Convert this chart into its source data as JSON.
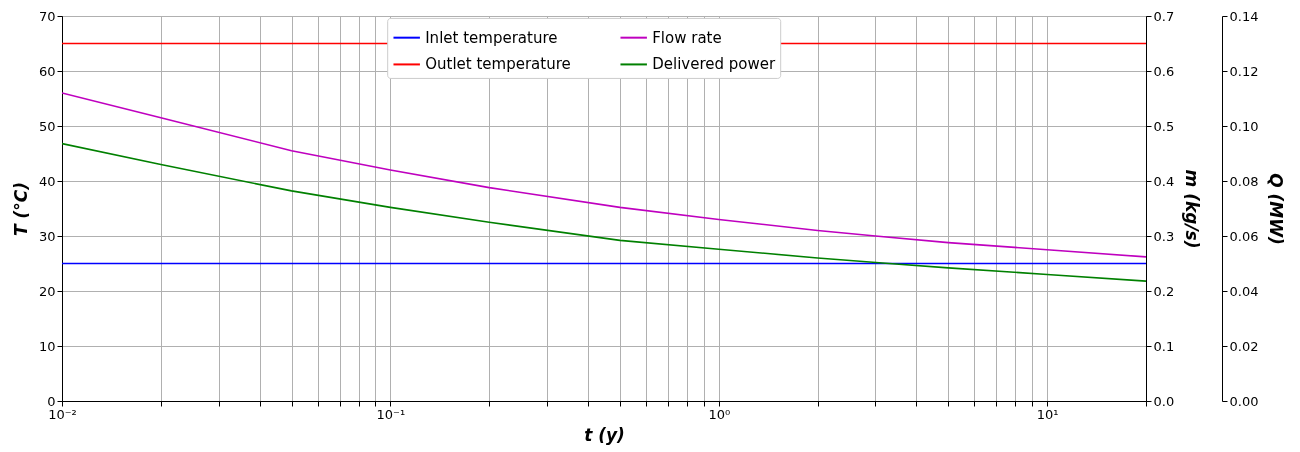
{
  "chart_data": {
    "type": "line",
    "xlabel": "t (y)",
    "ylabel": "T (°C)",
    "y2label": "m (kg/s)",
    "y3label": "Q (MW)",
    "log": "x",
    "grid": true,
    "legend": "top",
    "xlim": [
      0.01,
      20
    ],
    "xticks": [
      {
        "value": 0.01,
        "label": "10⁻²"
      },
      {
        "value": 0.02,
        "label": null
      },
      {
        "value": 0.03,
        "label": null
      },
      {
        "value": 0.04,
        "label": null
      },
      {
        "value": 0.05,
        "label": null
      },
      {
        "value": 0.06,
        "label": null
      },
      {
        "value": 0.07,
        "label": null
      },
      {
        "value": 0.08,
        "label": null
      },
      {
        "value": 0.09,
        "label": null
      },
      {
        "value": 0.1,
        "label": "10⁻¹"
      },
      {
        "value": 0.2,
        "label": null
      },
      {
        "value": 0.3,
        "label": null
      },
      {
        "value": 0.4,
        "label": null
      },
      {
        "value": 0.5,
        "label": null
      },
      {
        "value": 0.6,
        "label": null
      },
      {
        "value": 0.7,
        "label": null
      },
      {
        "value": 0.8,
        "label": null
      },
      {
        "value": 0.9,
        "label": null
      },
      {
        "value": 1,
        "label": "10⁰"
      },
      {
        "value": 2,
        "label": null
      },
      {
        "value": 3,
        "label": null
      },
      {
        "value": 4,
        "label": null
      },
      {
        "value": 5,
        "label": null
      },
      {
        "value": 6,
        "label": null
      },
      {
        "value": 7,
        "label": null
      },
      {
        "value": 8,
        "label": null
      },
      {
        "value": 9,
        "label": null
      },
      {
        "value": 10,
        "label": "10¹"
      },
      {
        "value": 20,
        "label": null
      }
    ],
    "ylim": [
      0,
      70
    ],
    "yticks": [
      0,
      10,
      20,
      30,
      40,
      50,
      60,
      70
    ],
    "y2lim": [
      0,
      0.7
    ],
    "y2ticks": [
      {
        "value": 0,
        "label": "0.0"
      },
      0.1,
      0.2,
      0.3,
      0.4,
      0.5,
      0.6,
      0.7
    ],
    "y3lim": [
      0,
      0.14
    ],
    "y3ticks": [
      {
        "value": 0,
        "label": "0.00"
      },
      0.02,
      0.04,
      0.06,
      0.08,
      {
        "value": 0.1,
        "label": "0.10"
      },
      0.12,
      0.14
    ],
    "series": [
      {
        "name": "Inlet temperature",
        "color": "#0000ff",
        "x": [
          0.01,
          20
        ],
        "values": [
          25,
          25
        ]
      },
      {
        "name": "Outlet temperature",
        "color": "#ff0000",
        "x": [
          0.01,
          20
        ],
        "values": [
          65,
          65
        ]
      },
      {
        "name": "Flow rate",
        "color": "#bf00bf",
        "axis": "y2",
        "x": [
          0.01,
          0.02,
          0.05,
          0.1,
          0.2,
          0.5,
          1,
          2,
          3,
          5,
          10,
          20
        ],
        "values": [
          0.56,
          0.515,
          0.455,
          0.42,
          0.388,
          0.352,
          0.33,
          0.31,
          0.3,
          0.288,
          0.275,
          0.262
        ]
      },
      {
        "name": "Delivered power",
        "color": "#008000",
        "axis": "y3",
        "x": [
          0.01,
          0.02,
          0.05,
          0.1,
          0.2,
          0.5,
          1,
          2,
          3.3,
          5,
          10,
          20
        ],
        "values": [
          0.0936,
          0.086,
          0.0764,
          0.0704,
          0.065,
          0.0584,
          0.0552,
          0.052,
          0.05,
          0.0484,
          0.046,
          0.0436
        ]
      }
    ]
  }
}
